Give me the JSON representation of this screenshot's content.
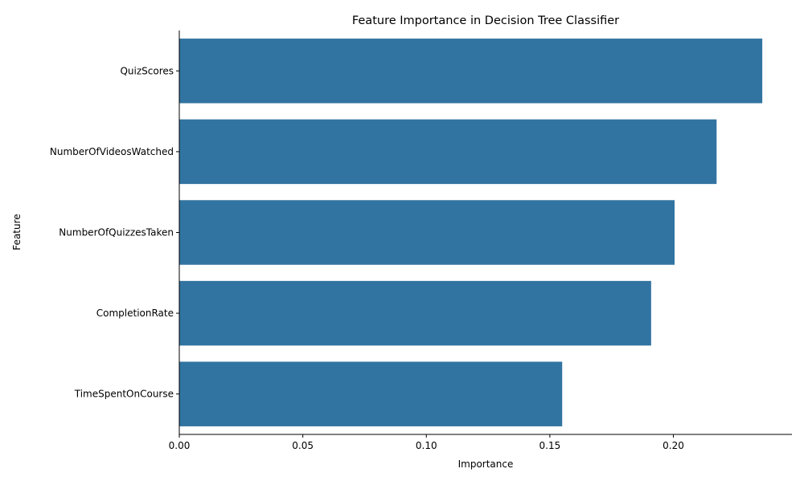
{
  "chart_data": {
    "type": "bar",
    "orientation": "horizontal",
    "title": "Feature Importance in Decision Tree Classifier",
    "xlabel": "Importance",
    "ylabel": "Feature",
    "categories": [
      "QuizScores",
      "NumberOfVideosWatched",
      "NumberOfQuizzesTaken",
      "CompletionRate",
      "TimeSpentOnCourse"
    ],
    "values": [
      0.236,
      0.2175,
      0.2005,
      0.191,
      0.155
    ],
    "xlim": [
      0,
      0.248
    ],
    "xticks": [
      0,
      0.05,
      0.1,
      0.15,
      0.2
    ],
    "xtick_labels": [
      "0.00",
      "0.05",
      "0.10",
      "0.15",
      "0.20"
    ],
    "grid": false,
    "legend": "none",
    "colors": {
      "bar": "#3274a1",
      "axis": "#000000"
    }
  }
}
